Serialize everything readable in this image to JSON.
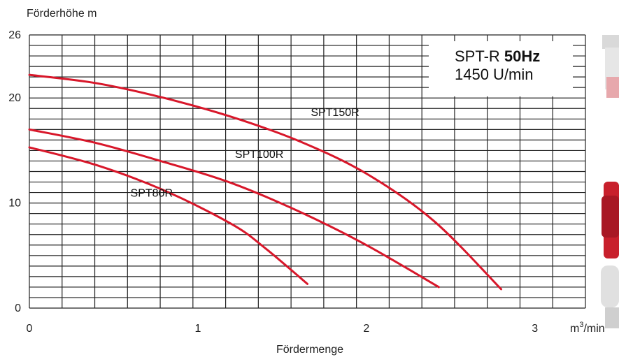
{
  "chart_data": {
    "type": "line",
    "ylabel": "Förderhöhe m",
    "xlabel": "Fördermenge",
    "x_unit_base": "m",
    "x_unit_exp": "3",
    "x_unit_tail": "/min",
    "xlim": [
      0,
      3.3
    ],
    "ylim": [
      0,
      26
    ],
    "x_ticks": [
      0,
      1,
      2,
      3
    ],
    "x_tick_labels": [
      "0",
      "1",
      "2",
      "3"
    ],
    "y_ticks": [
      0,
      10,
      20,
      26
    ],
    "y_tick_labels": [
      "0",
      "10",
      "20",
      "26"
    ],
    "grid": true,
    "info_box": {
      "line1_a": "SPT-R ",
      "line1_b": "50Hz",
      "line2": "1450 U/min"
    },
    "series": [
      {
        "name": "SPT150R",
        "x": [
          0,
          0.4,
          0.8,
          1.2,
          1.6,
          2.0,
          2.4,
          2.8
        ],
        "y": [
          22.2,
          21.4,
          20.0,
          18.2,
          15.9,
          12.8,
          8.3,
          1.8
        ]
      },
      {
        "name": "SPT100R",
        "x": [
          0,
          0.4,
          0.8,
          1.2,
          1.6,
          2.0,
          2.43
        ],
        "y": [
          17.0,
          15.7,
          13.9,
          11.9,
          9.2,
          6.0,
          2.0
        ]
      },
      {
        "name": "SPT80R",
        "x": [
          0,
          0.4,
          0.8,
          1.2,
          1.4,
          1.65
        ],
        "y": [
          15.3,
          13.6,
          11.2,
          8.0,
          5.7,
          2.3
        ]
      }
    ],
    "label_positions": [
      {
        "series": "SPT150R",
        "x": 1.67,
        "y": 18.3
      },
      {
        "series": "SPT100R",
        "x": 1.22,
        "y": 14.3
      },
      {
        "series": "SPT80R",
        "x": 0.6,
        "y": 10.6
      }
    ]
  }
}
